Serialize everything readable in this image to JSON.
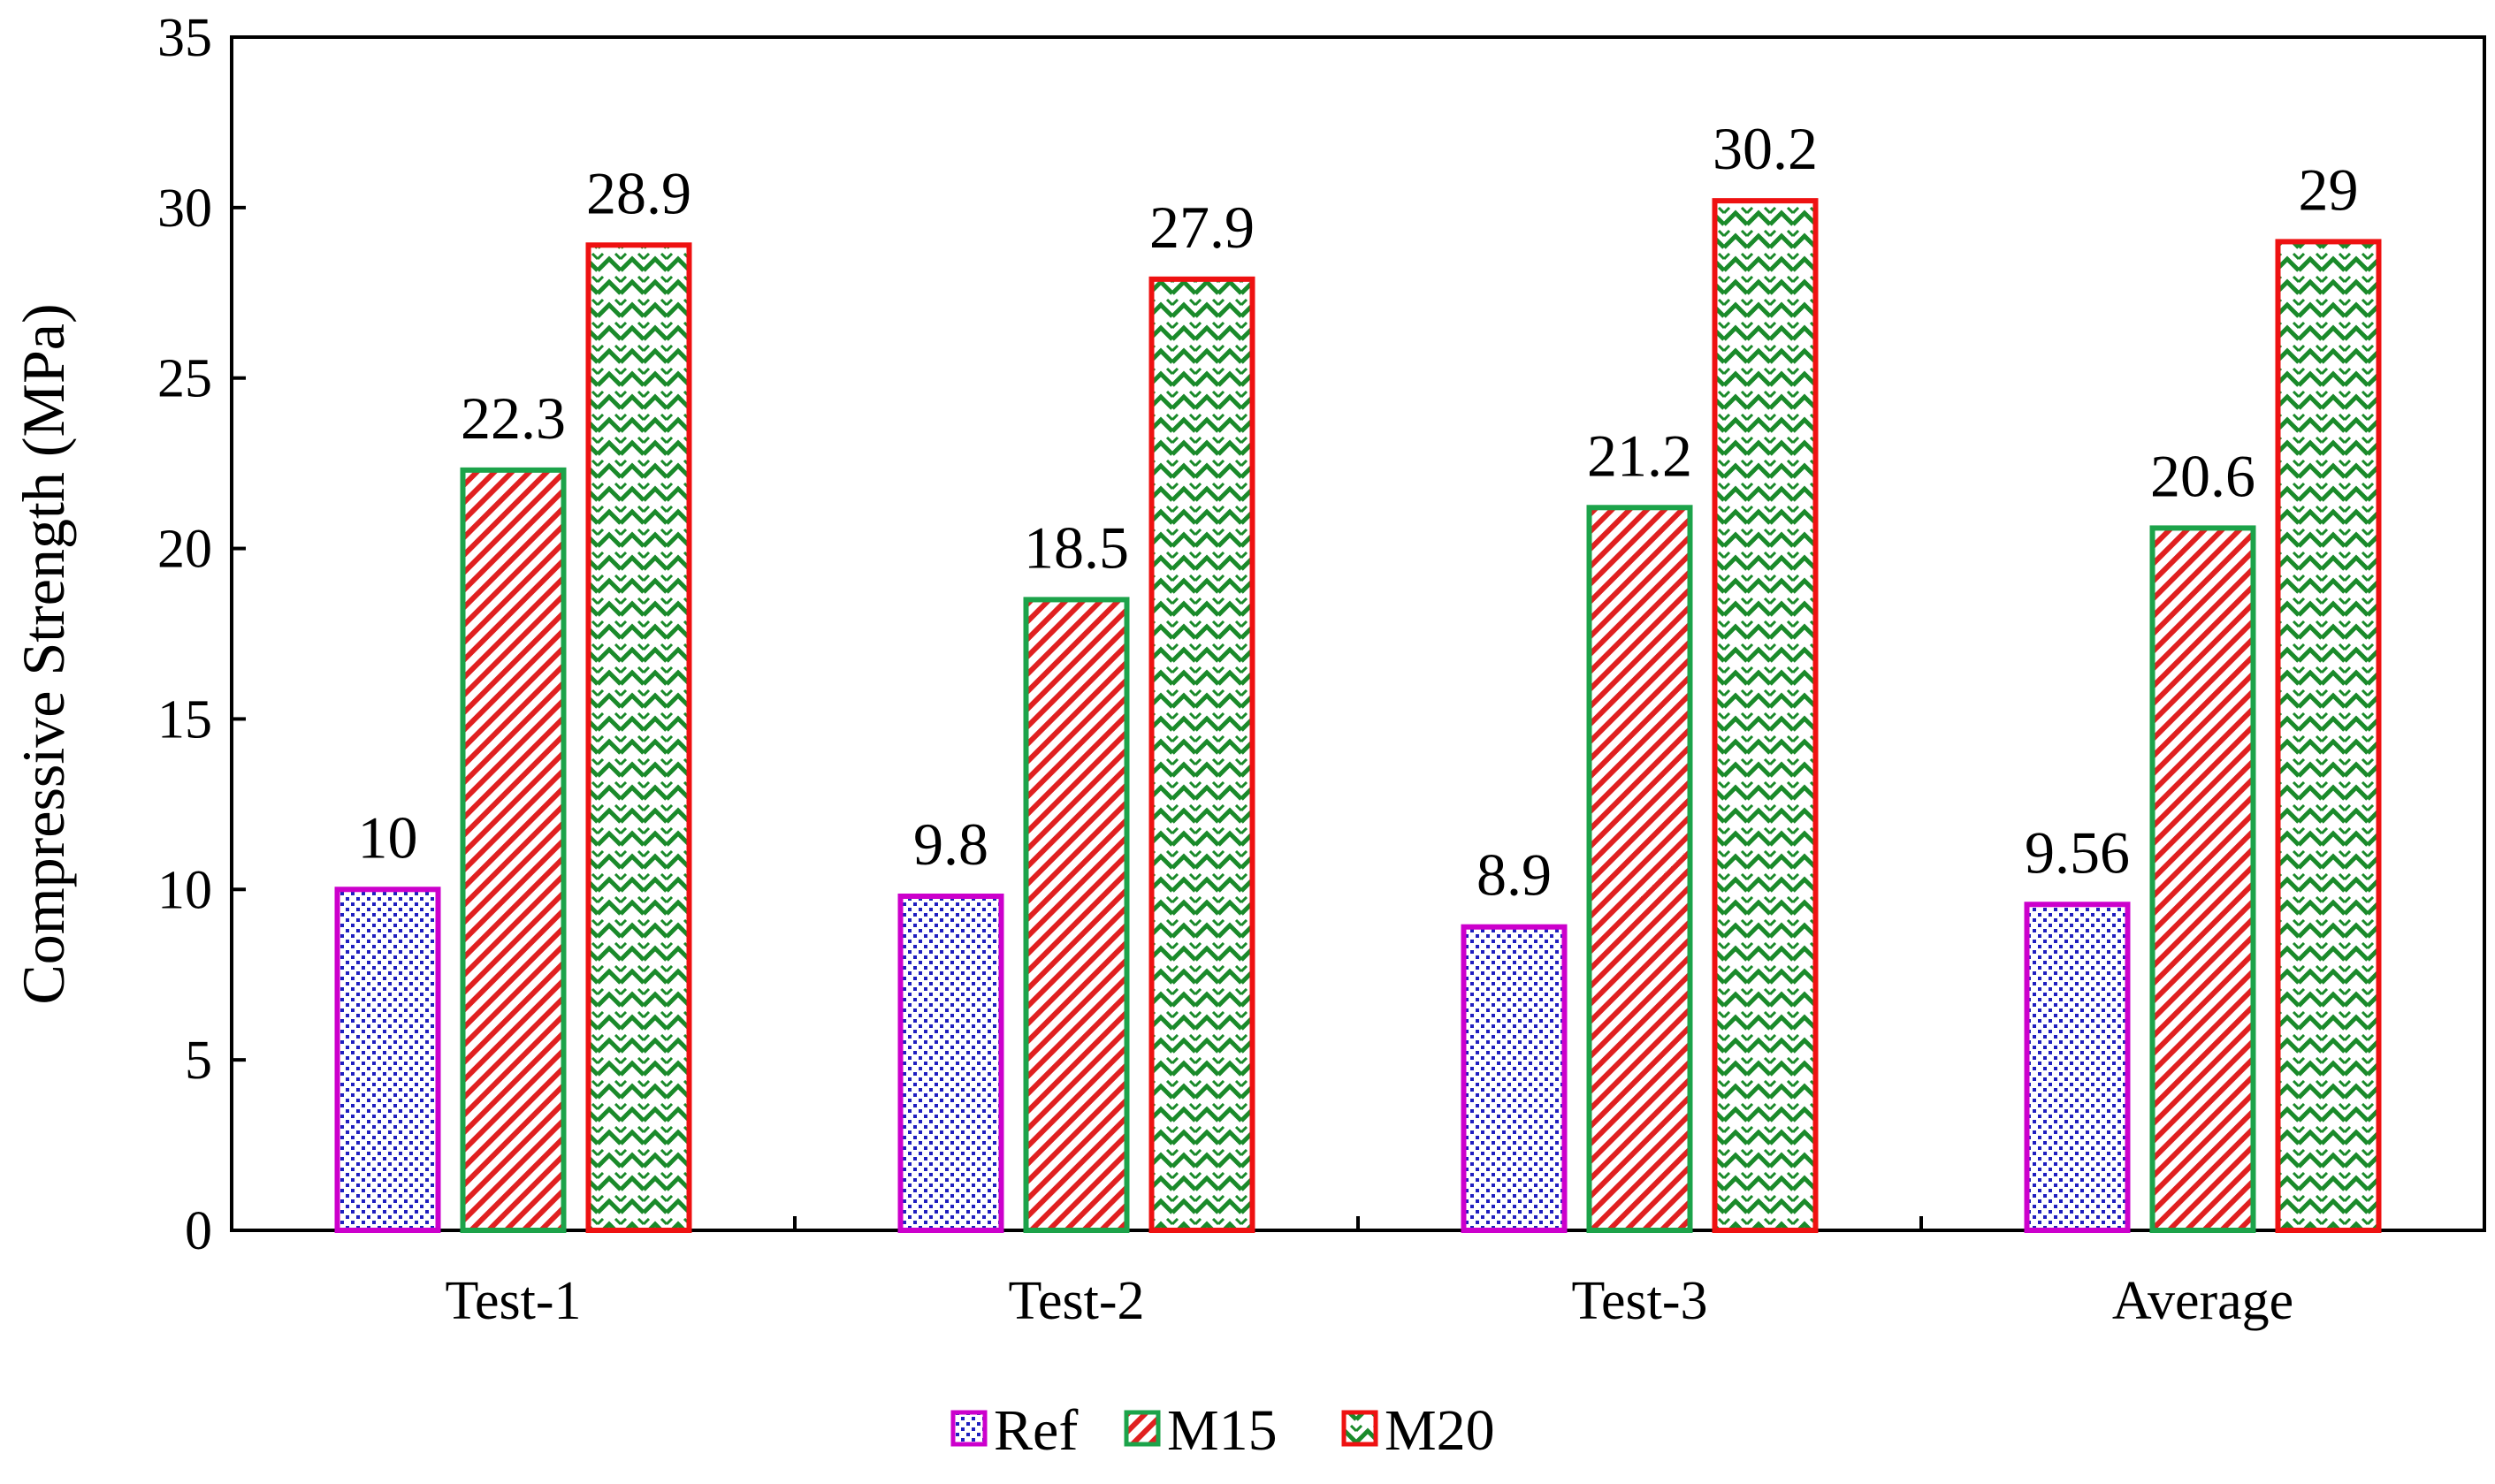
{
  "chart_data": {
    "type": "bar",
    "title": "",
    "xlabel": "",
    "ylabel": "Compressive Strength (MPa)",
    "ylim": [
      0,
      35
    ],
    "yticks": [
      "0",
      "5",
      "10",
      "15",
      "20",
      "25",
      "30",
      "35"
    ],
    "categories": [
      "Test-1",
      "Test-2",
      "Test-3",
      "Average"
    ],
    "series": [
      {
        "name": "Ref",
        "values": [
          10,
          9.8,
          8.9,
          9.56
        ],
        "labels": [
          "10",
          "9.8",
          "8.9",
          "9.56"
        ],
        "border": "#cc00cc",
        "pattern_color": "#1f1fbf",
        "pattern": "dots"
      },
      {
        "name": "M15",
        "values": [
          22.3,
          18.5,
          21.2,
          20.6
        ],
        "labels": [
          "22.3",
          "18.5",
          "21.2",
          "20.6"
        ],
        "border": "#1ca34a",
        "pattern_color": "#e02020",
        "pattern": "diagonal"
      },
      {
        "name": "M20",
        "values": [
          28.9,
          27.9,
          30.2,
          29
        ],
        "labels": [
          "28.9",
          "27.9",
          "30.2",
          "29"
        ],
        "border": "#ee1111",
        "pattern_color": "#1a8a2a",
        "pattern": "zigzag"
      }
    ],
    "legend_position": "bottom-center",
    "grid": false
  }
}
